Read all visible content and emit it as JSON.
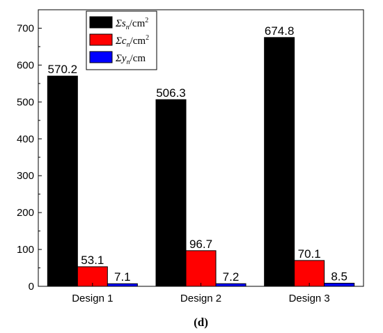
{
  "chart_data": {
    "type": "bar",
    "categories": [
      "Design 1",
      "Design 2",
      "Design 3"
    ],
    "series": [
      {
        "name": "Σsₙ/cm²",
        "values": [
          570.2,
          506.3,
          674.8
        ],
        "color": "#000000"
      },
      {
        "name": "Σcₙ/cm²",
        "values": [
          53.1,
          96.7,
          70.1
        ],
        "color": "#ff0000"
      },
      {
        "name": "Σyₙ/cm",
        "values": [
          7.1,
          7.2,
          8.5
        ],
        "color": "#0000ff"
      }
    ],
    "data_labels": [
      [
        "570.2",
        "53.1",
        "7.1"
      ],
      [
        "506.3",
        "96.7",
        "7.2"
      ],
      [
        "674.8",
        "70.1",
        "8.5"
      ]
    ],
    "ylim": [
      0,
      750
    ],
    "yticks": [
      0,
      100,
      200,
      300,
      400,
      500,
      600,
      700
    ],
    "legend_position": "top-left",
    "legend_entries": [
      {
        "prefix": "Σ",
        "var": "s",
        "sub": "n",
        "unit": "/cm",
        "sup": "2"
      },
      {
        "prefix": "Σ",
        "var": "c",
        "sub": "n",
        "unit": "/cm",
        "sup": "2"
      },
      {
        "prefix": "Σ",
        "var": "y",
        "sub": "n",
        "unit": "/cm",
        "sup": ""
      }
    ],
    "caption": "(d)"
  }
}
